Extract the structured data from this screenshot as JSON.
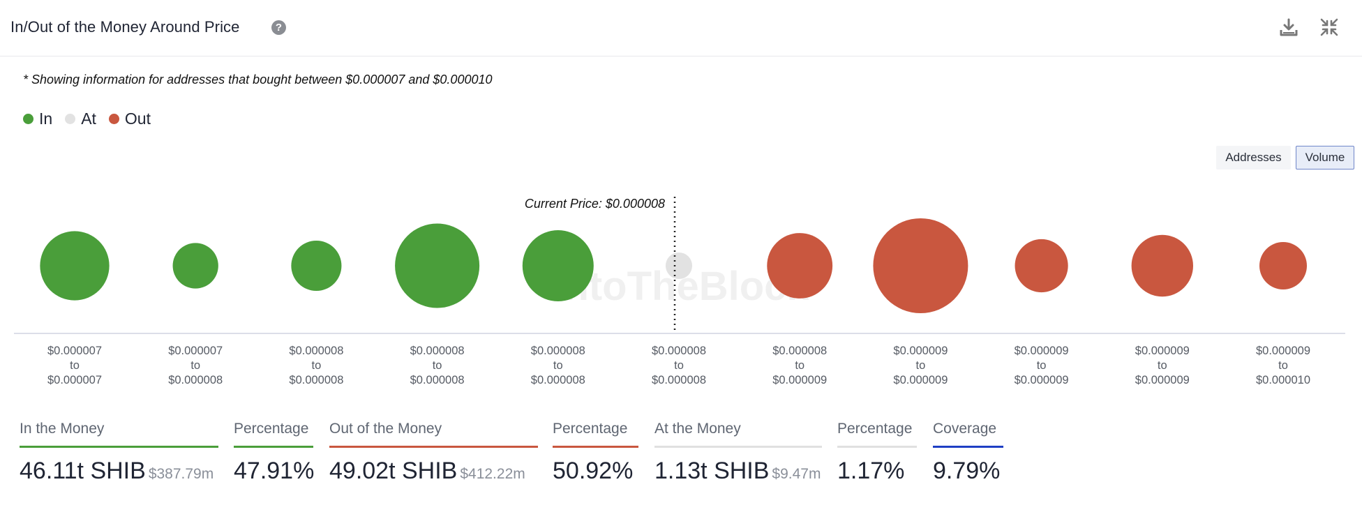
{
  "header": {
    "title": "In/Out of the Money Around Price",
    "help_glyph": "?"
  },
  "note": "* Showing information for addresses that bought between $0.000007 and $0.000010",
  "legend": [
    {
      "label": "In",
      "color": "#4a9e3a"
    },
    {
      "label": "At",
      "color": "#e2e2e2"
    },
    {
      "label": "Out",
      "color": "#c9573f"
    }
  ],
  "toggles": {
    "addresses": "Addresses",
    "volume": "Volume",
    "active": "volume"
  },
  "watermark": "IntoTheBlock",
  "chart_data": {
    "type": "scatter",
    "encoding": "bubble size = volume",
    "current_price_label": "Current Price: $0.000008",
    "current_price_index": 5,
    "categories": [
      {
        "from": "$0.000007",
        "to": "$0.000007",
        "status": "in"
      },
      {
        "from": "$0.000007",
        "to": "$0.000008",
        "status": "in"
      },
      {
        "from": "$0.000008",
        "to": "$0.000008",
        "status": "in"
      },
      {
        "from": "$0.000008",
        "to": "$0.000008",
        "status": "in"
      },
      {
        "from": "$0.000008",
        "to": "$0.000008",
        "status": "in"
      },
      {
        "from": "$0.000008",
        "to": "$0.000008",
        "status": "at"
      },
      {
        "from": "$0.000008",
        "to": "$0.000009",
        "status": "out"
      },
      {
        "from": "$0.000009",
        "to": "$0.000009",
        "status": "out"
      },
      {
        "from": "$0.000009",
        "to": "$0.000009",
        "status": "out"
      },
      {
        "from": "$0.000009",
        "to": "$0.000009",
        "status": "out"
      },
      {
        "from": "$0.000009",
        "to": "$0.000010",
        "status": "out"
      }
    ],
    "relative_size": [
      0.73,
      0.48,
      0.53,
      0.89,
      0.75,
      0.28,
      0.69,
      1.0,
      0.56,
      0.65,
      0.5
    ],
    "to_word": "to",
    "colors": {
      "in": "#4a9e3a",
      "at": "#e2e2e2",
      "out": "#c9573f"
    }
  },
  "stats": [
    {
      "label": "In the Money",
      "value": "46.11t SHIB",
      "sub": "$387.79m",
      "color": "#4a9e3a"
    },
    {
      "label": "Percentage",
      "value": "47.91%",
      "sub": "",
      "color": "#4a9e3a"
    },
    {
      "label": "Out of the Money",
      "value": "49.02t SHIB",
      "sub": "$412.22m",
      "color": "#c9573f"
    },
    {
      "label": "Percentage",
      "value": "50.92%",
      "sub": "",
      "color": "#c9573f"
    },
    {
      "label": "At the Money",
      "value": "1.13t SHIB",
      "sub": "$9.47m",
      "color": "#e0e0e0"
    },
    {
      "label": "Percentage",
      "value": "1.17%",
      "sub": "",
      "color": "#e0e0e0"
    },
    {
      "label": "Coverage",
      "value": "9.79%",
      "sub": "",
      "color": "#1f3fc4"
    }
  ]
}
